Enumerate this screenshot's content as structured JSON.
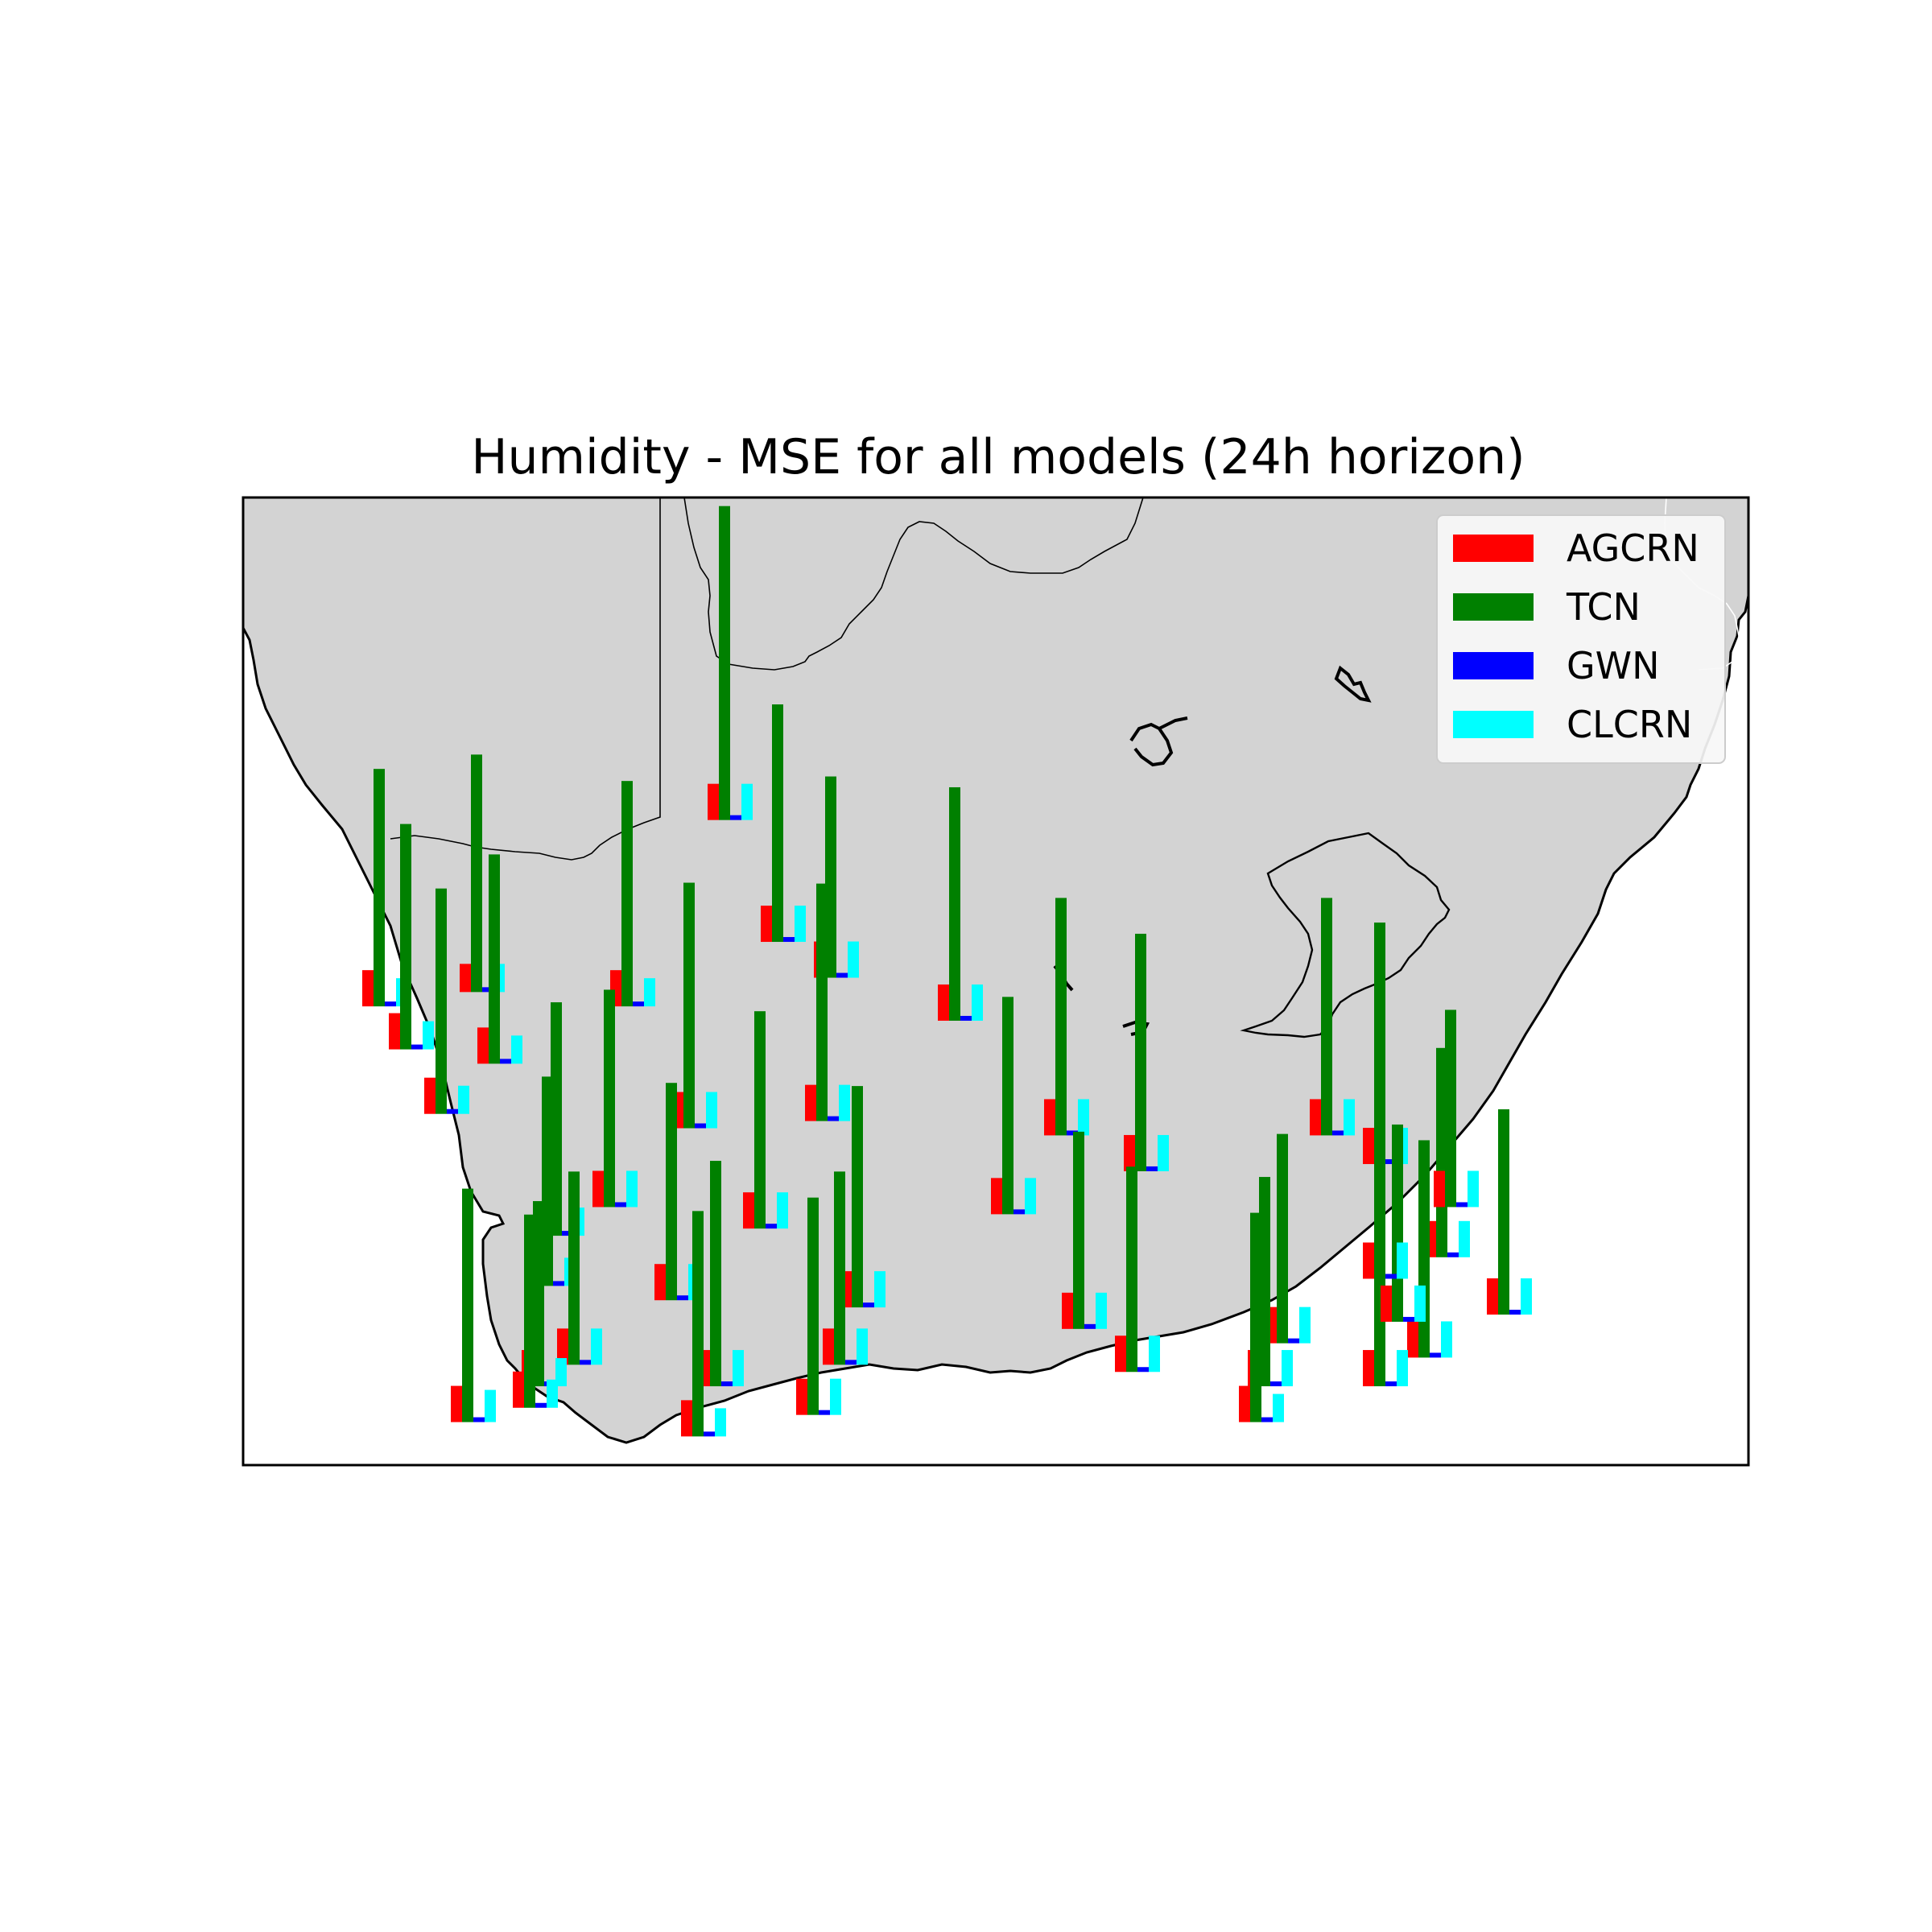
{
  "title": "Humidity - MSE for all models (24h horizon)",
  "colors": {
    "land": "#d3d3d3",
    "coast": "#000000",
    "border": "#000000",
    "background": "#ffffff"
  },
  "legend": {
    "placement": "top-right",
    "items": [
      {
        "label": "AGCRN",
        "color": "#ff0000"
      },
      {
        "label": "TCN",
        "color": "#008000"
      },
      {
        "label": "GWN",
        "color": "#0000ff"
      },
      {
        "label": "CLCRN",
        "color": "#00ffff"
      }
    ]
  },
  "chart_data": {
    "type": "bar",
    "description_units": "MSE (relative, per station)",
    "series": [
      {
        "name": "AGCRN",
        "color": "#ff0000"
      },
      {
        "name": "TCN",
        "color": "#008000"
      },
      {
        "name": "GWN",
        "color": "#0000ff"
      },
      {
        "name": "CLCRN",
        "color": "#00ffff"
      }
    ],
    "stations": [
      {
        "id": 1,
        "lon": 17.6,
        "lat": -29.1,
        "values": [
          0.45,
          2.95,
          0.06,
          0.35
        ]
      },
      {
        "id": 2,
        "lon": 17.9,
        "lat": -29.7,
        "values": [
          0.45,
          2.8,
          0.06,
          0.35
        ]
      },
      {
        "id": 3,
        "lon": 18.3,
        "lat": -30.6,
        "values": [
          0.45,
          2.8,
          0.06,
          0.35
        ]
      },
      {
        "id": 4,
        "lon": 18.7,
        "lat": -28.9,
        "values": [
          0.35,
          2.95,
          0.06,
          0.35
        ]
      },
      {
        "id": 5,
        "lon": 18.9,
        "lat": -29.9,
        "values": [
          0.45,
          2.6,
          0.06,
          0.35
        ]
      },
      {
        "id": 6,
        "lon": 20.4,
        "lat": -29.1,
        "values": [
          0.45,
          2.8,
          0.06,
          0.35
        ]
      },
      {
        "id": 7,
        "lon": 21.5,
        "lat": -26.5,
        "values": [
          0.45,
          3.9,
          0.06,
          0.45
        ]
      },
      {
        "id": 8,
        "lon": 22.1,
        "lat": -28.2,
        "values": [
          0.45,
          2.95,
          0.06,
          0.45
        ]
      },
      {
        "id": 9,
        "lon": 22.7,
        "lat": -28.7,
        "values": [
          0.45,
          2.5,
          0.06,
          0.45
        ]
      },
      {
        "id": 10,
        "lon": 24.1,
        "lat": -29.3,
        "values": [
          0.45,
          2.9,
          0.06,
          0.45
        ]
      },
      {
        "id": 11,
        "lon": 21.1,
        "lat": -30.8,
        "values": [
          0.45,
          3.05,
          0.06,
          0.45
        ]
      },
      {
        "id": 12,
        "lon": 22.6,
        "lat": -30.7,
        "values": [
          0.45,
          2.95,
          0.06,
          0.45
        ]
      },
      {
        "id": 13,
        "lon": 25.3,
        "lat": -30.9,
        "values": [
          0.45,
          2.95,
          0.06,
          0.45
        ]
      },
      {
        "id": 14,
        "lon": 26.2,
        "lat": -31.4,
        "values": [
          0.45,
          2.95,
          0.06,
          0.45
        ]
      },
      {
        "id": 15,
        "lon": 28.3,
        "lat": -30.9,
        "values": [
          0.45,
          2.95,
          0.06,
          0.45
        ]
      },
      {
        "id": 16,
        "lon": 28.9,
        "lat": -31.3,
        "values": [
          0.45,
          3.0,
          0.06,
          0.45
        ]
      },
      {
        "id": 17,
        "lon": 19.6,
        "lat": -32.3,
        "values": [
          0.35,
          2.9,
          0.06,
          0.35
        ]
      },
      {
        "id": 18,
        "lon": 20.2,
        "lat": -31.9,
        "values": [
          0.45,
          2.7,
          0.06,
          0.45
        ]
      },
      {
        "id": 19,
        "lon": 21.9,
        "lat": -32.2,
        "values": [
          0.45,
          2.7,
          0.06,
          0.45
        ]
      },
      {
        "id": 20,
        "lon": 24.7,
        "lat": -32.0,
        "values": [
          0.45,
          2.7,
          0.06,
          0.45
        ]
      },
      {
        "id": 21,
        "lon": 29.6,
        "lat": -32.6,
        "values": [
          0.45,
          2.6,
          0.06,
          0.45
        ]
      },
      {
        "id": 22,
        "lon": 19.5,
        "lat": -33.0,
        "values": [
          0.45,
          2.6,
          0.06,
          0.35
        ]
      },
      {
        "id": 23,
        "lon": 20.9,
        "lat": -33.2,
        "values": [
          0.45,
          2.7,
          0.06,
          0.45
        ]
      },
      {
        "id": 24,
        "lon": 23.0,
        "lat": -33.3,
        "values": [
          0.45,
          2.75,
          0.06,
          0.45
        ]
      },
      {
        "id": 25,
        "lon": 25.5,
        "lat": -33.6,
        "values": [
          0.45,
          2.45,
          0.06,
          0.45
        ]
      },
      {
        "id": 26,
        "lon": 27.8,
        "lat": -33.8,
        "values": [
          0.45,
          2.6,
          0.06,
          0.45
        ]
      },
      {
        "id": 27,
        "lon": 30.3,
        "lat": -33.4,
        "values": [
          0.45,
          2.55,
          0.06,
          0.45
        ]
      },
      {
        "id": 28,
        "lon": 19.8,
        "lat": -34.1,
        "values": [
          0.45,
          2.4,
          0.06,
          0.45
        ]
      },
      {
        "id": 29,
        "lon": 21.4,
        "lat": -34.4,
        "values": [
          0.45,
          2.8,
          0.06,
          0.45
        ]
      },
      {
        "id": 30,
        "lon": 22.8,
        "lat": -34.1,
        "values": [
          0.45,
          2.4,
          0.06,
          0.45
        ]
      },
      {
        "id": 31,
        "lon": 26.1,
        "lat": -34.2,
        "values": [
          0.45,
          2.55,
          0.06,
          0.45
        ]
      },
      {
        "id": 32,
        "lon": 27.6,
        "lat": -34.4,
        "values": [
          0.45,
          2.6,
          0.06,
          0.45
        ]
      },
      {
        "id": 33,
        "lon": 29.4,
        "lat": -34.0,
        "values": [
          0.45,
          2.7,
          0.06,
          0.45
        ]
      },
      {
        "id": 34,
        "lon": 19.4,
        "lat": -34.4,
        "values": [
          0.45,
          2.3,
          0.06,
          0.35
        ]
      },
      {
        "id": 35,
        "lon": 18.6,
        "lat": -34.9,
        "values": [
          0.45,
          2.9,
          0.06,
          0.4
        ]
      },
      {
        "id": 36,
        "lon": 19.3,
        "lat": -34.7,
        "values": [
          0.45,
          2.4,
          0.06,
          0.35
        ]
      },
      {
        "id": 37,
        "lon": 21.2,
        "lat": -35.1,
        "values": [
          0.45,
          2.8,
          0.06,
          0.35
        ]
      },
      {
        "id": 38,
        "lon": 22.5,
        "lat": -34.8,
        "values": [
          0.45,
          2.7,
          0.06,
          0.45
        ]
      },
      {
        "id": 39,
        "lon": 27.5,
        "lat": -34.9,
        "values": [
          0.45,
          2.6,
          0.06,
          0.35
        ]
      },
      {
        "id": 40,
        "lon": 28.9,
        "lat": -34.4,
        "values": [
          0.45,
          2.6,
          0.06,
          0.45
        ]
      },
      {
        "id": 41,
        "lon": 29.1,
        "lat": -33.5,
        "values": [
          0.45,
          2.45,
          0.06,
          0.45
        ]
      },
      {
        "id": 42,
        "lon": 28.9,
        "lat": -32.9,
        "values": [
          0.45,
          2.45,
          0.06,
          0.45
        ]
      },
      {
        "id": 43,
        "lon": 29.7,
        "lat": -31.9,
        "values": [
          0.45,
          2.45,
          0.06,
          0.45
        ]
      }
    ]
  }
}
